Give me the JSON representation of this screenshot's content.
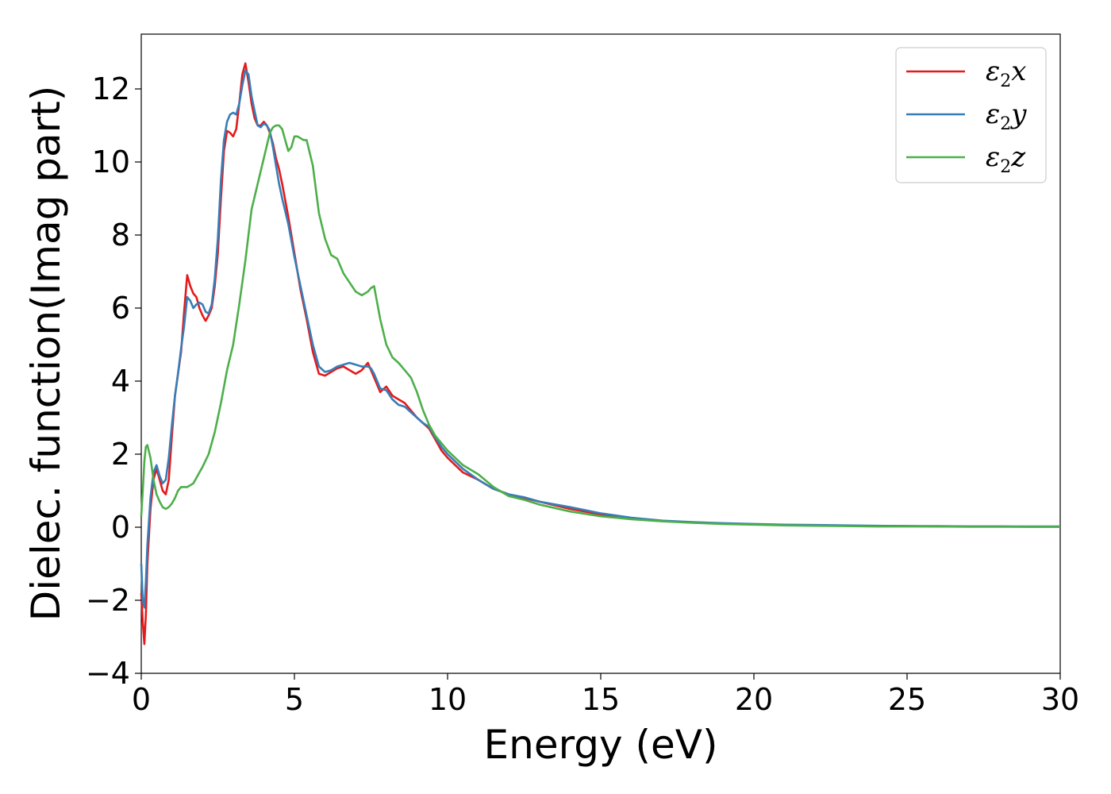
{
  "chart_data": {
    "type": "line",
    "xlabel": "Energy (eV)",
    "ylabel": "Dielec. function(Imag part)",
    "xlim": [
      0,
      30
    ],
    "ylim": [
      -4,
      13.5
    ],
    "xticks": [
      0,
      5,
      10,
      15,
      20,
      25,
      30
    ],
    "yticks": [
      -4,
      -2,
      0,
      2,
      4,
      6,
      8,
      10,
      12
    ],
    "ytick_labels": [
      "−4",
      "−2",
      "0",
      "2",
      "4",
      "6",
      "8",
      "10",
      "12"
    ],
    "grid": false,
    "legend_position": "top-right",
    "series": [
      {
        "name": "ε₂x",
        "legend_main": "ε",
        "legend_sub": "2",
        "legend_suffix": "x",
        "color": "#e41a1c",
        "x": [
          0,
          0.05,
          0.1,
          0.15,
          0.2,
          0.3,
          0.4,
          0.5,
          0.6,
          0.7,
          0.8,
          0.9,
          1.0,
          1.1,
          1.2,
          1.3,
          1.4,
          1.5,
          1.6,
          1.7,
          1.8,
          1.9,
          2.0,
          2.1,
          2.2,
          2.3,
          2.4,
          2.5,
          2.6,
          2.7,
          2.8,
          2.9,
          3.0,
          3.1,
          3.2,
          3.3,
          3.4,
          3.5,
          3.6,
          3.7,
          3.8,
          3.9,
          4.0,
          4.1,
          4.2,
          4.3,
          4.4,
          4.5,
          4.6,
          4.8,
          5.0,
          5.2,
          5.4,
          5.6,
          5.8,
          6.0,
          6.2,
          6.4,
          6.6,
          6.8,
          7.0,
          7.2,
          7.4,
          7.5,
          7.6,
          7.8,
          8.0,
          8.2,
          8.4,
          8.6,
          8.8,
          9.0,
          9.2,
          9.4,
          9.6,
          9.8,
          10.0,
          10.5,
          11.0,
          11.5,
          12.0,
          12.5,
          13.0,
          14.0,
          15.0,
          16.0,
          17.0,
          18.0,
          19.0,
          20.0,
          21.0,
          22.0,
          23.0,
          24.0,
          25.0,
          26.0,
          27.0,
          28.0,
          29.0,
          30.0
        ],
        "y": [
          -1.8,
          -2.6,
          -3.2,
          -2.4,
          -1.0,
          0.5,
          1.3,
          1.6,
          1.3,
          1.0,
          0.9,
          1.3,
          2.5,
          3.6,
          4.2,
          4.8,
          5.9,
          6.9,
          6.6,
          6.4,
          6.3,
          6.0,
          5.8,
          5.65,
          5.8,
          6.0,
          6.6,
          7.5,
          9.0,
          10.3,
          10.85,
          10.8,
          10.7,
          10.9,
          11.6,
          12.4,
          12.7,
          12.2,
          11.6,
          11.2,
          11.0,
          11.0,
          11.1,
          11.0,
          10.8,
          10.5,
          10.1,
          9.8,
          9.4,
          8.5,
          7.5,
          6.5,
          5.7,
          4.8,
          4.2,
          4.15,
          4.25,
          4.35,
          4.4,
          4.3,
          4.2,
          4.3,
          4.5,
          4.3,
          4.1,
          3.7,
          3.85,
          3.6,
          3.5,
          3.4,
          3.2,
          3.0,
          2.85,
          2.7,
          2.4,
          2.1,
          1.9,
          1.5,
          1.3,
          1.05,
          0.9,
          0.8,
          0.7,
          0.5,
          0.35,
          0.25,
          0.17,
          0.13,
          0.1,
          0.08,
          0.06,
          0.05,
          0.04,
          0.03,
          0.03,
          0.02,
          0.02,
          0.02,
          0.01,
          0.01
        ]
      },
      {
        "name": "ε₂y",
        "legend_main": "ε",
        "legend_sub": "2",
        "legend_suffix": "y",
        "color": "#377eb8",
        "x": [
          0,
          0.05,
          0.1,
          0.15,
          0.2,
          0.3,
          0.4,
          0.5,
          0.6,
          0.7,
          0.8,
          0.9,
          1.0,
          1.1,
          1.2,
          1.3,
          1.4,
          1.5,
          1.6,
          1.7,
          1.8,
          1.9,
          2.0,
          2.1,
          2.2,
          2.3,
          2.4,
          2.5,
          2.6,
          2.7,
          2.8,
          2.9,
          3.0,
          3.1,
          3.2,
          3.3,
          3.4,
          3.5,
          3.6,
          3.7,
          3.8,
          3.9,
          4.0,
          4.1,
          4.2,
          4.3,
          4.4,
          4.5,
          4.6,
          4.8,
          5.0,
          5.2,
          5.4,
          5.6,
          5.8,
          6.0,
          6.2,
          6.4,
          6.6,
          6.8,
          7.0,
          7.2,
          7.4,
          7.5,
          7.6,
          7.8,
          8.0,
          8.2,
          8.4,
          8.6,
          8.8,
          9.0,
          9.2,
          9.4,
          9.6,
          9.8,
          10.0,
          10.5,
          11.0,
          11.5,
          12.0,
          12.5,
          13.0,
          14.0,
          15.0,
          16.0,
          17.0,
          18.0,
          19.0,
          20.0,
          21.0,
          22.0,
          23.0,
          24.0,
          25.0,
          26.0,
          27.0,
          28.0,
          29.0,
          30.0
        ],
        "y": [
          -1.0,
          -2.0,
          -2.2,
          -1.5,
          -0.5,
          0.8,
          1.5,
          1.7,
          1.4,
          1.2,
          1.3,
          1.9,
          2.8,
          3.6,
          4.2,
          4.9,
          5.5,
          6.3,
          6.2,
          6.0,
          6.1,
          6.15,
          6.1,
          5.9,
          5.85,
          6.1,
          6.8,
          7.9,
          9.5,
          10.6,
          11.1,
          11.3,
          11.35,
          11.3,
          11.6,
          12.1,
          12.5,
          12.4,
          11.8,
          11.4,
          11.0,
          10.95,
          11.05,
          11.0,
          10.85,
          10.4,
          9.9,
          9.4,
          9.0,
          8.3,
          7.4,
          6.6,
          5.8,
          5.0,
          4.4,
          4.25,
          4.3,
          4.4,
          4.45,
          4.5,
          4.45,
          4.4,
          4.4,
          4.35,
          4.2,
          3.8,
          3.75,
          3.5,
          3.35,
          3.3,
          3.15,
          3.0,
          2.85,
          2.75,
          2.45,
          2.2,
          2.0,
          1.6,
          1.3,
          1.05,
          0.9,
          0.82,
          0.7,
          0.55,
          0.38,
          0.26,
          0.18,
          0.14,
          0.11,
          0.09,
          0.07,
          0.06,
          0.05,
          0.04,
          0.03,
          0.03,
          0.02,
          0.02,
          0.02,
          0.02
        ]
      },
      {
        "name": "ε₂z",
        "legend_main": "ε",
        "legend_sub": "2",
        "legend_suffix": "z",
        "color": "#4daf4a",
        "x": [
          0,
          0.05,
          0.1,
          0.15,
          0.2,
          0.3,
          0.4,
          0.5,
          0.6,
          0.7,
          0.8,
          0.9,
          1.0,
          1.1,
          1.2,
          1.3,
          1.4,
          1.5,
          1.6,
          1.7,
          1.8,
          1.9,
          2.0,
          2.2,
          2.4,
          2.6,
          2.8,
          3.0,
          3.2,
          3.4,
          3.6,
          3.8,
          4.0,
          4.2,
          4.3,
          4.4,
          4.5,
          4.6,
          4.7,
          4.8,
          4.9,
          5.0,
          5.1,
          5.2,
          5.3,
          5.4,
          5.6,
          5.8,
          6.0,
          6.2,
          6.4,
          6.6,
          6.8,
          7.0,
          7.2,
          7.3,
          7.4,
          7.5,
          7.6,
          7.8,
          8.0,
          8.2,
          8.4,
          8.6,
          8.8,
          9.0,
          9.2,
          9.4,
          9.6,
          9.8,
          10.0,
          10.5,
          11.0,
          11.5,
          12.0,
          12.5,
          13.0,
          14.0,
          15.0,
          16.0,
          17.0,
          18.0,
          19.0,
          20.0,
          21.0,
          22.0,
          23.0,
          24.0,
          25.0,
          26.0,
          27.0,
          28.0,
          29.0,
          30.0
        ],
        "y": [
          0.3,
          1.0,
          1.8,
          2.2,
          2.25,
          1.9,
          1.3,
          0.9,
          0.7,
          0.55,
          0.5,
          0.55,
          0.65,
          0.8,
          1.0,
          1.1,
          1.1,
          1.1,
          1.15,
          1.2,
          1.35,
          1.5,
          1.65,
          2.0,
          2.6,
          3.4,
          4.3,
          5.0,
          6.1,
          7.3,
          8.7,
          9.4,
          10.1,
          10.8,
          10.95,
          11.0,
          11.0,
          10.9,
          10.6,
          10.3,
          10.4,
          10.7,
          10.7,
          10.65,
          10.6,
          10.6,
          9.9,
          8.6,
          7.9,
          7.45,
          7.35,
          6.95,
          6.7,
          6.45,
          6.35,
          6.4,
          6.45,
          6.55,
          6.6,
          5.7,
          5.0,
          4.65,
          4.5,
          4.3,
          4.1,
          3.7,
          3.2,
          2.8,
          2.5,
          2.3,
          2.1,
          1.7,
          1.45,
          1.1,
          0.85,
          0.75,
          0.62,
          0.43,
          0.3,
          0.22,
          0.16,
          0.12,
          0.09,
          0.07,
          0.05,
          0.04,
          0.03,
          0.02,
          0.02,
          0.02,
          0.01,
          0.01,
          0.01,
          0.01
        ]
      }
    ]
  }
}
